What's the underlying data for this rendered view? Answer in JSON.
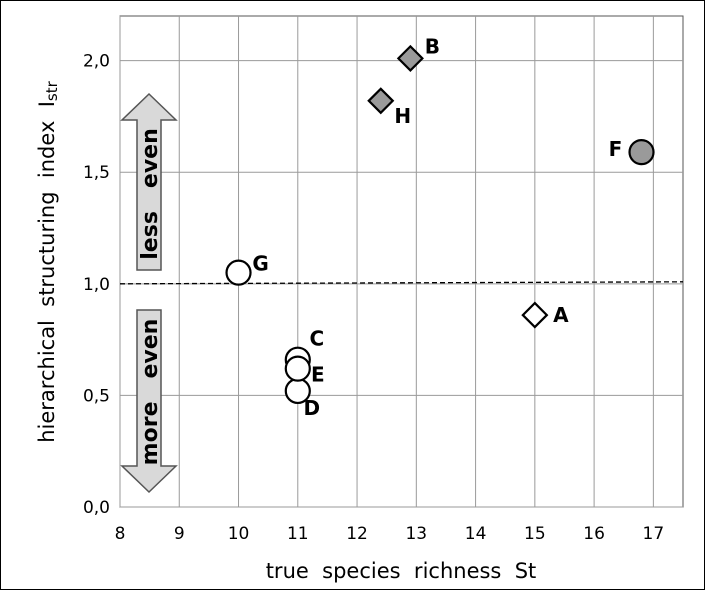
{
  "chart_data": {
    "type": "scatter",
    "xlabel": "true  species  richness  St",
    "ylabel_main": "hierarchical  structuring  index  I",
    "ylabel_sub": "str",
    "xlim": [
      8,
      17.5
    ],
    "ylim": [
      0,
      2.2
    ],
    "x_ticks": [
      8,
      9,
      10,
      11,
      12,
      13,
      14,
      15,
      16,
      17
    ],
    "y_ticks": [
      0,
      0.5,
      1.0,
      1.5,
      2.0
    ],
    "y_tick_labels": [
      "0,0",
      "0,5",
      "1,0",
      "1,5",
      "2,0"
    ],
    "grid": true,
    "reference_line": {
      "y": 1.0,
      "style": "dashed"
    },
    "points": [
      {
        "label": "A",
        "x": 15.0,
        "y": 0.86,
        "marker": "diamond",
        "fill": "#ffffff"
      },
      {
        "label": "B",
        "x": 12.9,
        "y": 2.01,
        "marker": "diamond",
        "fill": "#9a9a9a"
      },
      {
        "label": "C",
        "x": 11.0,
        "y": 0.66,
        "marker": "circle",
        "fill": "#ffffff"
      },
      {
        "label": "D",
        "x": 11.0,
        "y": 0.52,
        "marker": "circle",
        "fill": "#ffffff"
      },
      {
        "label": "E",
        "x": 11.0,
        "y": 0.62,
        "marker": "circle",
        "fill": "#ffffff"
      },
      {
        "label": "F",
        "x": 16.8,
        "y": 1.59,
        "marker": "circle",
        "fill": "#9a9a9a"
      },
      {
        "label": "G",
        "x": 10.0,
        "y": 1.05,
        "marker": "circle",
        "fill": "#ffffff"
      },
      {
        "label": "H",
        "x": 12.4,
        "y": 1.82,
        "marker": "diamond",
        "fill": "#9a9a9a"
      }
    ],
    "annotations": {
      "up_arrow_text": "less   even",
      "down_arrow_text": "more   even"
    },
    "colors": {
      "gray_fill": "#9a9a9a",
      "arrow_fill": "#d9d9d9",
      "grid": "#9a9a9a"
    }
  }
}
